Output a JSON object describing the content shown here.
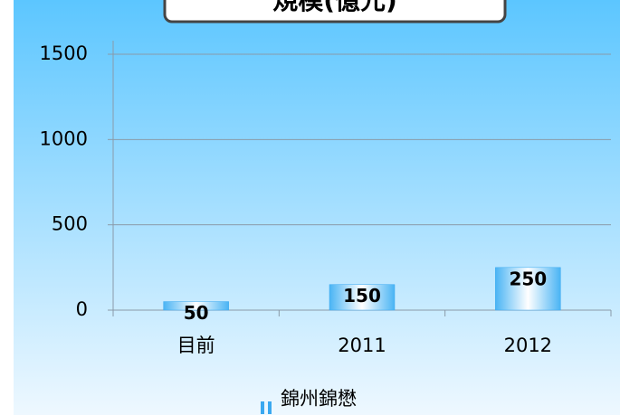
{
  "chart_data": {
    "type": "bar",
    "title": "規模(億元)",
    "categories": [
      "目前",
      "2011",
      "2012"
    ],
    "series": [
      {
        "name": "錦州錦懋",
        "color": "#3aa8f0",
        "values": [
          50,
          150,
          250
        ]
      }
    ],
    "ylim": [
      0,
      1500
    ],
    "yticks": [
      0,
      500,
      1000,
      1500
    ],
    "grid": true,
    "legend": "bottom"
  }
}
